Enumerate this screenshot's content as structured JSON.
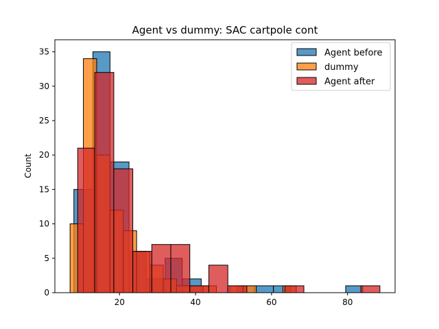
{
  "chart_data": {
    "type": "bar",
    "title": "Agent vs dummy: SAC cartpole cont",
    "xlabel": "",
    "ylabel": "Count",
    "xlim": [
      3.0,
      92.5
    ],
    "ylim": [
      0,
      36.75
    ],
    "xticks": [
      20,
      40,
      60,
      80
    ],
    "yticks": [
      0,
      5,
      10,
      15,
      20,
      25,
      30,
      35
    ],
    "grid": false,
    "legend_position": "top-right",
    "series": [
      {
        "name": "Agent before",
        "color": "#1f77b4",
        "bins": [
          {
            "x0": 8.0,
            "x1": 13.0,
            "count": 15
          },
          {
            "x0": 13.0,
            "x1": 17.5,
            "count": 35
          },
          {
            "x0": 17.5,
            "x1": 22.5,
            "count": 19
          },
          {
            "x0": 22.5,
            "x1": 27.0,
            "count": 6
          },
          {
            "x0": 27.0,
            "x1": 32.0,
            "count": 2
          },
          {
            "x0": 32.0,
            "x1": 36.5,
            "count": 5
          },
          {
            "x0": 36.5,
            "x1": 41.5,
            "count": 2
          },
          {
            "x0": 41.5,
            "x1": 46.0,
            "count": 0
          },
          {
            "x0": 46.0,
            "x1": 51.0,
            "count": 0
          },
          {
            "x0": 51.0,
            "x1": 55.5,
            "count": 1
          },
          {
            "x0": 55.5,
            "x1": 60.5,
            "count": 1
          },
          {
            "x0": 60.5,
            "x1": 65.0,
            "count": 1
          },
          {
            "x0": 65.0,
            "x1": 70.0,
            "count": 0
          },
          {
            "x0": 70.0,
            "x1": 74.5,
            "count": 0
          },
          {
            "x0": 74.5,
            "x1": 79.5,
            "count": 0
          },
          {
            "x0": 79.5,
            "x1": 84.0,
            "count": 1
          }
        ]
      },
      {
        "name": "dummy",
        "color": "#ff7f0e",
        "bins": [
          {
            "x0": 7.0,
            "x1": 10.5,
            "count": 10
          },
          {
            "x0": 10.5,
            "x1": 14.0,
            "count": 34
          },
          {
            "x0": 14.0,
            "x1": 17.5,
            "count": 20
          },
          {
            "x0": 17.5,
            "x1": 21.0,
            "count": 12
          },
          {
            "x0": 21.0,
            "x1": 24.5,
            "count": 9
          },
          {
            "x0": 24.5,
            "x1": 28.0,
            "count": 6
          },
          {
            "x0": 28.0,
            "x1": 31.5,
            "count": 4
          },
          {
            "x0": 31.5,
            "x1": 35.0,
            "count": 2
          },
          {
            "x0": 35.0,
            "x1": 38.5,
            "count": 1
          },
          {
            "x0": 38.5,
            "x1": 42.0,
            "count": 1
          },
          {
            "x0": 42.0,
            "x1": 45.5,
            "count": 1
          },
          {
            "x0": 45.5,
            "x1": 49.0,
            "count": 0
          },
          {
            "x0": 49.0,
            "x1": 52.5,
            "count": 1
          },
          {
            "x0": 52.5,
            "x1": 56.0,
            "count": 1
          },
          {
            "x0": 56.0,
            "x1": 59.5,
            "count": 0
          },
          {
            "x0": 59.5,
            "x1": 63.0,
            "count": 0
          },
          {
            "x0": 63.0,
            "x1": 66.5,
            "count": 1
          }
        ]
      },
      {
        "name": "Agent after",
        "color": "#d62728",
        "bins": [
          {
            "x0": 9.0,
            "x1": 13.5,
            "count": 21
          },
          {
            "x0": 13.5,
            "x1": 18.5,
            "count": 32
          },
          {
            "x0": 18.5,
            "x1": 23.5,
            "count": 18
          },
          {
            "x0": 23.5,
            "x1": 28.5,
            "count": 6
          },
          {
            "x0": 28.5,
            "x1": 33.5,
            "count": 7
          },
          {
            "x0": 33.5,
            "x1": 38.5,
            "count": 7
          },
          {
            "x0": 38.5,
            "x1": 43.5,
            "count": 1
          },
          {
            "x0": 43.5,
            "x1": 48.5,
            "count": 4
          },
          {
            "x0": 48.5,
            "x1": 53.5,
            "count": 1
          },
          {
            "x0": 53.5,
            "x1": 58.5,
            "count": 0
          },
          {
            "x0": 58.5,
            "x1": 63.5,
            "count": 0
          },
          {
            "x0": 63.5,
            "x1": 68.5,
            "count": 1
          },
          {
            "x0": 68.5,
            "x1": 73.5,
            "count": 0
          },
          {
            "x0": 73.5,
            "x1": 78.5,
            "count": 0
          },
          {
            "x0": 78.5,
            "x1": 83.5,
            "count": 0
          },
          {
            "x0": 83.5,
            "x1": 88.5,
            "count": 1
          }
        ]
      }
    ]
  }
}
